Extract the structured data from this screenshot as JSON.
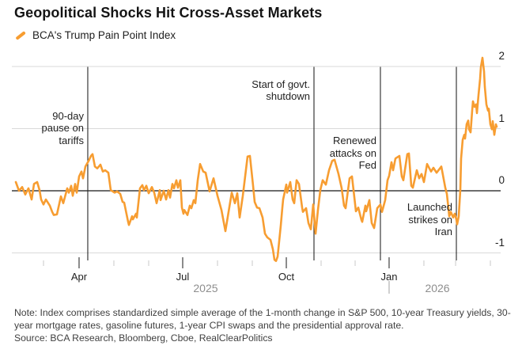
{
  "header": {
    "title": "Geopolitical Shocks Hit Cross-Asset Markets",
    "legend": {
      "label": "BCA's Trump Pain Point Index",
      "marker_color": "#F79D31"
    }
  },
  "footer": {
    "note": "Note: Index comprises standardized simple average of the 1-month change in S&P 500, 10-year Treasury yields, 30-year mortgage rates, gasoline futures, 1-year CPI swaps and the presidential approval rate.",
    "source": "Source: BCA Research, Bloomberg, Cboe, RealClearPolitics"
  },
  "colors": {
    "line": "#F79D31",
    "gridline": "#D9D9D9",
    "zero_line": "#3D3D3D",
    "event_line": "#262626",
    "tick_minor": "#C9C9C9",
    "tick_major": "#3F3F3F",
    "year_divider": "#B0B0B0"
  },
  "chart_data": {
    "type": "line",
    "title": "Geopolitical Shocks Hit Cross-Asset Markets",
    "xlabel": "",
    "ylabel": "",
    "x_range_note": "Feb 2025 through early Apr 2026, t = fraction of x-axis",
    "ylim": [
      -1.16,
      2.25
    ],
    "grid": "horizontal",
    "legend_position": "top-left",
    "y_axis": {
      "ticks": [
        2,
        1,
        0,
        -1
      ],
      "zero_line": 0,
      "labels_side": "right"
    },
    "x_axis": {
      "major_ticks": [
        {
          "label": "Apr",
          "t": 0.1375
        },
        {
          "label": "Jul",
          "t": 0.3495
        },
        {
          "label": "Oct",
          "t": 0.5615
        },
        {
          "label": "Jan",
          "t": 0.7718
        }
      ],
      "minor_ticks_t": [
        0.0647,
        0.2087,
        0.2799,
        0.4207,
        0.4919,
        0.6327,
        0.7023,
        0.843,
        0.9078,
        0.979
      ],
      "year_labels": [
        {
          "label": "2025",
          "t": 0.3964
        },
        {
          "label": "2026",
          "t": 0.8706
        }
      ],
      "year_divider_t": 0.7718
    },
    "events": [
      {
        "lines": [
          "90-day",
          "pause on",
          "tariffs"
        ],
        "t": 0.1553,
        "text_v": 1.2
      },
      {
        "lines": [
          "Start of govt.",
          "shutdown"
        ],
        "t": 0.6181,
        "text_v": 1.71
      },
      {
        "lines": [
          "Renewed",
          "attacks on",
          "Fed"
        ],
        "t": 0.754,
        "text_v": 0.8
      },
      {
        "lines": [
          "Launched",
          "strikes on",
          "Iran"
        ],
        "t": 0.9094,
        "text_v": -0.27
      }
    ],
    "series": [
      {
        "name": "BCA's Trump Pain Point Index",
        "color": "#F79D31",
        "points": [
          [
            0.0081,
            0.14
          ],
          [
            0.0146,
            0.0
          ],
          [
            0.021,
            0.06
          ],
          [
            0.0275,
            -0.06
          ],
          [
            0.034,
            0.04
          ],
          [
            0.0405,
            -0.14
          ],
          [
            0.0453,
            0.11
          ],
          [
            0.0518,
            0.14
          ],
          [
            0.0566,
            0.01
          ],
          [
            0.0599,
            -0.14
          ],
          [
            0.0647,
            -0.22
          ],
          [
            0.0696,
            -0.14
          ],
          [
            0.0777,
            -0.24
          ],
          [
            0.0825,
            -0.34
          ],
          [
            0.0858,
            -0.39
          ],
          [
            0.0922,
            -0.38
          ],
          [
            0.1003,
            -0.09
          ],
          [
            0.1052,
            -0.2
          ],
          [
            0.1133,
            0.04
          ],
          [
            0.1165,
            -0.03
          ],
          [
            0.1214,
            0.08
          ],
          [
            0.1246,
            -0.08
          ],
          [
            0.1294,
            0.11
          ],
          [
            0.1327,
            -0.03
          ],
          [
            0.1375,
            0.23
          ],
          [
            0.1424,
            0.31
          ],
          [
            0.1456,
            0.2
          ],
          [
            0.1505,
            0.39
          ],
          [
            0.157,
            0.48
          ],
          [
            0.1618,
            0.56
          ],
          [
            0.165,
            0.59
          ],
          [
            0.1699,
            0.39
          ],
          [
            0.1748,
            0.36
          ],
          [
            0.1812,
            0.42
          ],
          [
            0.1861,
            0.31
          ],
          [
            0.1909,
            0.33
          ],
          [
            0.1974,
            0.29
          ],
          [
            0.2023,
            0.01
          ],
          [
            0.2104,
            -0.03
          ],
          [
            0.2152,
            -0.01
          ],
          [
            0.2217,
            -0.05
          ],
          [
            0.2265,
            -0.18
          ],
          [
            0.2298,
            -0.19
          ],
          [
            0.2379,
            -0.5
          ],
          [
            0.2395,
            -0.55
          ],
          [
            0.246,
            -0.41
          ],
          [
            0.2476,
            -0.46
          ],
          [
            0.254,
            -0.37
          ],
          [
            0.2557,
            -0.43
          ],
          [
            0.2621,
            0.04
          ],
          [
            0.267,
            0.09
          ],
          [
            0.2702,
            0.01
          ],
          [
            0.2751,
            0.08
          ],
          [
            0.2799,
            -0.04
          ],
          [
            0.2864,
            0.06
          ],
          [
            0.2913,
            -0.03
          ],
          [
            0.2961,
            -0.2
          ],
          [
            0.3026,
            0.01
          ],
          [
            0.3042,
            -0.15
          ],
          [
            0.3107,
            0.0
          ],
          [
            0.3155,
            -0.14
          ],
          [
            0.3204,
            0.01
          ],
          [
            0.3236,
            -0.11
          ],
          [
            0.3285,
            0.11
          ],
          [
            0.3317,
            0.04
          ],
          [
            0.3366,
            0.17
          ],
          [
            0.3398,
            0.05
          ],
          [
            0.3447,
            0.17
          ],
          [
            0.3479,
            -0.27
          ],
          [
            0.3511,
            -0.37
          ],
          [
            0.3528,
            -0.31
          ],
          [
            0.3592,
            -0.39
          ],
          [
            0.3641,
            -0.24
          ],
          [
            0.3673,
            -0.28
          ],
          [
            0.3722,
            -0.15
          ],
          [
            0.3754,
            -0.2
          ],
          [
            0.3803,
            0.17
          ],
          [
            0.3851,
            0.43
          ],
          [
            0.3916,
            0.31
          ],
          [
            0.3964,
            0.29
          ],
          [
            0.4045,
            -0.01
          ],
          [
            0.4126,
            0.2
          ],
          [
            0.4207,
            -0.08
          ],
          [
            0.4288,
            -0.31
          ],
          [
            0.4369,
            -0.65
          ],
          [
            0.4498,
            -0.03
          ],
          [
            0.4563,
            -0.2
          ],
          [
            0.4612,
            -0.04
          ],
          [
            0.466,
            -0.43
          ],
          [
            0.4725,
            -0.08
          ],
          [
            0.4822,
            0.55
          ],
          [
            0.487,
            0.56
          ],
          [
            0.4935,
            0.08
          ],
          [
            0.4968,
            -0.18
          ],
          [
            0.5016,
            -0.27
          ],
          [
            0.5065,
            -0.28
          ],
          [
            0.5129,
            -0.43
          ],
          [
            0.5178,
            -0.69
          ],
          [
            0.5227,
            -0.75
          ],
          [
            0.5291,
            -0.79
          ],
          [
            0.534,
            -0.94
          ],
          [
            0.5372,
            -1.11
          ],
          [
            0.5405,
            -1.13
          ],
          [
            0.5437,
            -1.06
          ],
          [
            0.5502,
            -0.56
          ],
          [
            0.5534,
            -0.27
          ],
          [
            0.555,
            -0.14
          ],
          [
            0.5615,
            0.1
          ],
          [
            0.5631,
            -0.03
          ],
          [
            0.5696,
            0.14
          ],
          [
            0.5744,
            -0.14
          ],
          [
            0.5777,
            -0.2
          ],
          [
            0.5825,
            0.17
          ],
          [
            0.5874,
            0.11
          ],
          [
            0.5939,
            -0.27
          ],
          [
            0.5955,
            -0.34
          ],
          [
            0.6019,
            -0.28
          ],
          [
            0.6068,
            -0.52
          ],
          [
            0.6117,
            -0.62
          ],
          [
            0.6165,
            -0.22
          ],
          [
            0.6214,
            -0.69
          ],
          [
            0.6262,
            -0.31
          ],
          [
            0.6311,
            0.01
          ],
          [
            0.6359,
            0.17
          ],
          [
            0.6424,
            0.1
          ],
          [
            0.6489,
            0.33
          ],
          [
            0.6553,
            0.48
          ],
          [
            0.6602,
            0.5
          ],
          [
            0.6683,
            0.27
          ],
          [
            0.6748,
            0.04
          ],
          [
            0.6796,
            -0.24
          ],
          [
            0.6828,
            -0.28
          ],
          [
            0.6909,
            0.2
          ],
          [
            0.6958,
            0.23
          ],
          [
            0.699,
            0.01
          ],
          [
            0.7039,
            -0.33
          ],
          [
            0.7087,
            -0.27
          ],
          [
            0.7152,
            -0.47
          ],
          [
            0.7168,
            -0.5
          ],
          [
            0.7233,
            -0.24
          ],
          [
            0.7249,
            -0.33
          ],
          [
            0.7314,
            -0.15
          ],
          [
            0.7362,
            -0.52
          ],
          [
            0.7411,
            -0.6
          ],
          [
            0.7476,
            -0.28
          ],
          [
            0.754,
            -0.22
          ],
          [
            0.7573,
            -0.34
          ],
          [
            0.7638,
            -0.15
          ],
          [
            0.7686,
            0.17
          ],
          [
            0.7718,
            0.24
          ],
          [
            0.7767,
            0.46
          ],
          [
            0.7799,
            0.33
          ],
          [
            0.7848,
            0.52
          ],
          [
            0.7929,
            0.56
          ],
          [
            0.7977,
            0.23
          ],
          [
            0.8009,
            0.17
          ],
          [
            0.809,
            0.59
          ],
          [
            0.8123,
            0.6
          ],
          [
            0.8171,
            0.08
          ],
          [
            0.8204,
            0.05
          ],
          [
            0.8285,
            0.33
          ],
          [
            0.8333,
            0.2
          ],
          [
            0.8382,
            0.27
          ],
          [
            0.843,
            0.14
          ],
          [
            0.8495,
            0.43
          ],
          [
            0.8576,
            0.31
          ],
          [
            0.8625,
            0.37
          ],
          [
            0.8689,
            0.29
          ],
          [
            0.8786,
            0.39
          ],
          [
            0.8867,
            0.05
          ],
          [
            0.89,
            -0.05
          ],
          [
            0.8932,
            -0.28
          ],
          [
            0.8948,
            -0.41
          ],
          [
            0.8981,
            -0.34
          ],
          [
            0.9029,
            -0.43
          ],
          [
            0.9061,
            -0.37
          ],
          [
            0.9094,
            -0.46
          ],
          [
            0.911,
            -0.54
          ],
          [
            0.9142,
            -0.41
          ],
          [
            0.9175,
            0.01
          ],
          [
            0.9191,
            0.52
          ],
          [
            0.9223,
            0.82
          ],
          [
            0.9256,
            0.9
          ],
          [
            0.9272,
            0.84
          ],
          [
            0.9304,
            1.07
          ],
          [
            0.9337,
            1.13
          ],
          [
            0.9353,
            0.99
          ],
          [
            0.9385,
            0.94
          ],
          [
            0.9417,
            1.29
          ],
          [
            0.9434,
            1.44
          ],
          [
            0.9466,
            1.35
          ],
          [
            0.9498,
            1.39
          ],
          [
            0.9515,
            1.25
          ],
          [
            0.9547,
            1.54
          ],
          [
            0.9579,
            1.8
          ],
          [
            0.9595,
            1.99
          ],
          [
            0.9628,
            2.14
          ],
          [
            0.966,
            1.92
          ],
          [
            0.9676,
            1.67
          ],
          [
            0.9709,
            1.39
          ],
          [
            0.9741,
            1.29
          ],
          [
            0.9757,
            1.32
          ],
          [
            0.979,
            1.07
          ],
          [
            0.9822,
            0.99
          ],
          [
            0.9838,
            1.12
          ],
          [
            0.987,
            0.9
          ],
          [
            0.9903,
            1.07
          ],
          [
            0.9919,
            1.03
          ]
        ]
      }
    ]
  }
}
